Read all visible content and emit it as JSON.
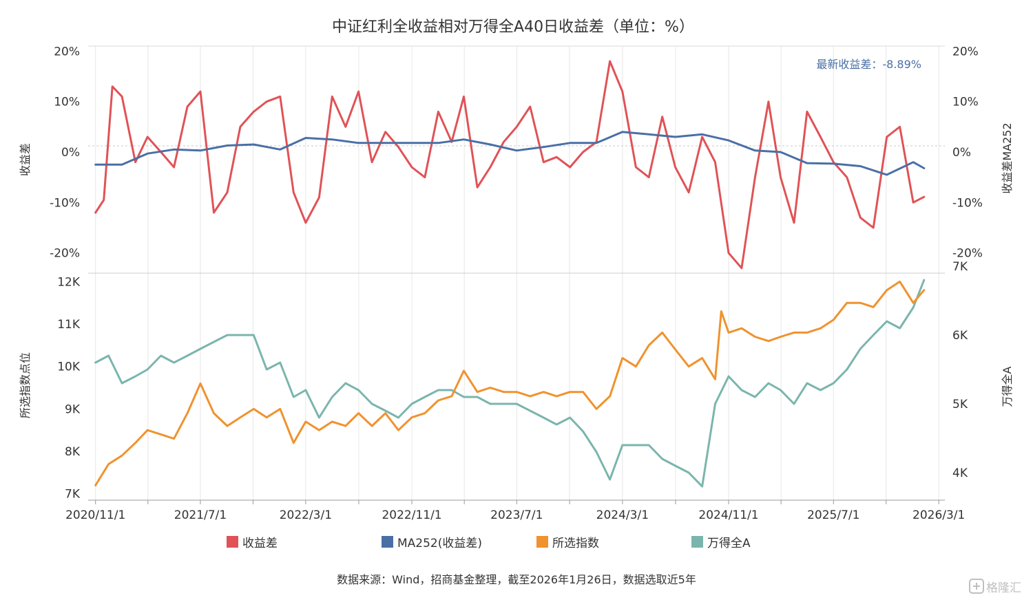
{
  "chart_data": {
    "type": "line",
    "title": "中证红利全收益相对万得全A40日收益差（单位：%）",
    "x_ticks": [
      "2020/11/1",
      "2021/7/1",
      "2022/3/1",
      "2022/11/1",
      "2023/7/1",
      "2024/3/1",
      "2024/11/1",
      "2025/7/1",
      "2026/3/1"
    ],
    "x_range": [
      "2020/10/15",
      "2026/3/15"
    ],
    "annotation": "最新收益差：-8.89%",
    "source": "数据来源：Wind，招商基金整理，截至2026年1月26日，数据选取近5年",
    "watermark": "格隆汇",
    "top_panel": {
      "ylabel_left": "收益差",
      "ylabel_right": "收益差MA252",
      "yticks": [
        "20%",
        "10%",
        "0%",
        "-10%",
        "-20%"
      ],
      "ylim": [
        -24,
        21
      ],
      "series": [
        {
          "name": "收益差",
          "color": "#e05256",
          "x": [
            "2020/11/1",
            "2020/11/20",
            "2020/12/10",
            "2021/1/1",
            "2021/2/1",
            "2021/3/1",
            "2021/4/1",
            "2021/5/1",
            "2021/6/1",
            "2021/7/1",
            "2021/8/1",
            "2021/9/1",
            "2021/10/1",
            "2021/11/1",
            "2021/12/1",
            "2022/1/1",
            "2022/2/1",
            "2022/3/1",
            "2022/4/1",
            "2022/5/1",
            "2022/6/1",
            "2022/7/1",
            "2022/8/1",
            "2022/9/1",
            "2022/10/1",
            "2022/11/1",
            "2022/12/1",
            "2023/1/1",
            "2023/2/1",
            "2023/3/1",
            "2023/4/1",
            "2023/5/1",
            "2023/6/1",
            "2023/7/1",
            "2023/8/1",
            "2023/9/1",
            "2023/10/1",
            "2023/11/1",
            "2023/12/1",
            "2024/1/1",
            "2024/2/1",
            "2024/3/1",
            "2024/4/1",
            "2024/5/1",
            "2024/6/1",
            "2024/7/1",
            "2024/8/1",
            "2024/9/1",
            "2024/10/1",
            "2024/11/1",
            "2024/12/1",
            "2025/1/1",
            "2025/2/1",
            "2025/3/1",
            "2025/4/1",
            "2025/5/1",
            "2025/6/1",
            "2025/7/1",
            "2025/8/1",
            "2025/9/1",
            "2025/10/1",
            "2025/11/1",
            "2025/12/1",
            "2026/1/1",
            "2026/1/26"
          ],
          "values": [
            -12.0,
            -9.5,
            13.0,
            11.0,
            -2.0,
            3.0,
            0.0,
            -3.0,
            9.0,
            12.0,
            -12.0,
            -8.0,
            5.0,
            8.0,
            10.0,
            11.0,
            -8.0,
            -14.0,
            -9.0,
            11.0,
            5.0,
            12.0,
            -2.0,
            4.0,
            1.0,
            -3.0,
            -5.0,
            8.0,
            2.0,
            11.0,
            -7.0,
            -3.0,
            2.0,
            5.0,
            9.0,
            -2.0,
            -1.0,
            -3.0,
            0.0,
            2.0,
            18.0,
            12.0,
            -3.0,
            -5.0,
            7.0,
            -3.0,
            -8.0,
            3.0,
            -2.0,
            -20.0,
            -23.0,
            -5.0,
            10.0,
            -5.0,
            -14.0,
            8.0,
            3.0,
            -2.0,
            -5.0,
            -13.0,
            -15.0,
            3.0,
            5.0,
            -10.0,
            -8.89
          ]
        },
        {
          "name": "MA252(收益差)",
          "color": "#4a6fa5",
          "x": [
            "2020/11/1",
            "2021/1/1",
            "2021/3/1",
            "2021/5/1",
            "2021/7/1",
            "2021/9/1",
            "2021/11/1",
            "2022/1/1",
            "2022/3/1",
            "2022/5/1",
            "2022/7/1",
            "2022/9/1",
            "2022/11/1",
            "2023/1/1",
            "2023/3/1",
            "2023/5/1",
            "2023/7/1",
            "2023/9/1",
            "2023/11/1",
            "2024/1/1",
            "2024/3/1",
            "2024/5/1",
            "2024/7/1",
            "2024/9/1",
            "2024/11/1",
            "2025/1/1",
            "2025/3/1",
            "2025/5/1",
            "2025/7/1",
            "2025/9/1",
            "2025/11/1",
            "2026/1/1",
            "2026/1/26"
          ],
          "values": [
            -2.5,
            -2.5,
            -0.3,
            0.5,
            0.3,
            1.3,
            1.5,
            0.5,
            2.8,
            2.5,
            1.8,
            1.8,
            1.8,
            1.8,
            2.5,
            1.5,
            0.3,
            1.0,
            1.8,
            1.8,
            4.0,
            3.5,
            3.0,
            3.5,
            2.3,
            0.3,
            0.0,
            -2.2,
            -2.3,
            -2.8,
            -4.5,
            -2.0,
            -3.2
          ]
        }
      ]
    },
    "bottom_panel": {
      "ylabel_left": "所选指数点位",
      "ylabel_right": "万得全A",
      "yticks_left": [
        "12K",
        "11K",
        "10K",
        "9K",
        "8K",
        "7K"
      ],
      "yticks_right": [
        "7K",
        "6K",
        "5K",
        "4K"
      ],
      "ylim_left": [
        6850,
        12200
      ],
      "ylim_right": [
        3600,
        6900
      ],
      "series": [
        {
          "name": "所选指数",
          "color": "#f0922e",
          "axis": "left",
          "x": [
            "2020/11/1",
            "2020/12/1",
            "2021/1/1",
            "2021/2/1",
            "2021/3/1",
            "2021/4/1",
            "2021/5/1",
            "2021/6/1",
            "2021/7/1",
            "2021/8/1",
            "2021/9/1",
            "2021/10/1",
            "2021/11/1",
            "2021/12/1",
            "2022/1/1",
            "2022/2/1",
            "2022/3/1",
            "2022/4/1",
            "2022/5/1",
            "2022/6/1",
            "2022/7/1",
            "2022/8/1",
            "2022/9/1",
            "2022/10/1",
            "2022/11/1",
            "2022/12/1",
            "2023/1/1",
            "2023/2/1",
            "2023/3/1",
            "2023/4/1",
            "2023/5/1",
            "2023/6/1",
            "2023/7/1",
            "2023/8/1",
            "2023/9/1",
            "2023/10/1",
            "2023/11/1",
            "2023/12/1",
            "2024/1/1",
            "2024/2/1",
            "2024/3/1",
            "2024/4/1",
            "2024/5/1",
            "2024/6/1",
            "2024/7/1",
            "2024/8/1",
            "2024/9/1",
            "2024/10/1",
            "2024/10/15",
            "2024/11/1",
            "2024/12/1",
            "2025/1/1",
            "2025/2/1",
            "2025/3/1",
            "2025/4/1",
            "2025/5/1",
            "2025/6/1",
            "2025/7/1",
            "2025/8/1",
            "2025/9/1",
            "2025/10/1",
            "2025/11/1",
            "2025/12/1",
            "2026/1/1",
            "2026/1/26"
          ],
          "values": [
            7200,
            7700,
            7900,
            8200,
            8500,
            8400,
            8300,
            8900,
            9600,
            8900,
            8600,
            8800,
            9000,
            8800,
            9000,
            8200,
            8700,
            8500,
            8700,
            8600,
            8900,
            8600,
            8900,
            8500,
            8800,
            8900,
            9200,
            9300,
            9900,
            9400,
            9500,
            9400,
            9400,
            9300,
            9400,
            9300,
            9400,
            9400,
            9000,
            9300,
            10200,
            10000,
            10500,
            10800,
            10400,
            10000,
            10200,
            9700,
            11300,
            10800,
            10900,
            10700,
            10600,
            10700,
            10800,
            10800,
            10900,
            11100,
            11500,
            11500,
            11400,
            11800,
            12000,
            11500,
            11800
          ]
        },
        {
          "name": "万得全A",
          "color": "#7ab5ad",
          "axis": "right",
          "x": [
            "2020/11/1",
            "2020/12/1",
            "2021/1/1",
            "2021/2/1",
            "2021/3/1",
            "2021/4/1",
            "2021/5/1",
            "2021/6/1",
            "2021/7/1",
            "2021/8/1",
            "2021/9/1",
            "2021/10/1",
            "2021/11/1",
            "2021/12/1",
            "2022/1/1",
            "2022/2/1",
            "2022/3/1",
            "2022/4/1",
            "2022/5/1",
            "2022/6/1",
            "2022/7/1",
            "2022/8/1",
            "2022/9/1",
            "2022/10/1",
            "2022/11/1",
            "2022/12/1",
            "2023/1/1",
            "2023/2/1",
            "2023/3/1",
            "2023/4/1",
            "2023/5/1",
            "2023/6/1",
            "2023/7/1",
            "2023/8/1",
            "2023/9/1",
            "2023/10/1",
            "2023/11/1",
            "2023/12/1",
            "2024/1/1",
            "2024/2/1",
            "2024/3/1",
            "2024/4/1",
            "2024/5/1",
            "2024/6/1",
            "2024/7/1",
            "2024/8/1",
            "2024/9/1",
            "2024/10/1",
            "2024/11/1",
            "2024/12/1",
            "2025/1/1",
            "2025/2/1",
            "2025/3/1",
            "2025/4/1",
            "2025/5/1",
            "2025/6/1",
            "2025/7/1",
            "2025/8/1",
            "2025/9/1",
            "2025/10/1",
            "2025/11/1",
            "2025/12/1",
            "2026/1/1",
            "2026/1/26"
          ],
          "values": [
            5600,
            5700,
            5300,
            5400,
            5500,
            5700,
            5600,
            5700,
            5800,
            5900,
            6000,
            6000,
            6000,
            5500,
            5600,
            5100,
            5200,
            4800,
            5100,
            5300,
            5200,
            5000,
            4900,
            4800,
            5000,
            5100,
            5200,
            5200,
            5100,
            5100,
            5000,
            5000,
            5000,
            4900,
            4800,
            4700,
            4800,
            4600,
            4300,
            3900,
            4400,
            4400,
            4400,
            4200,
            4100,
            4000,
            3800,
            5000,
            5400,
            5200,
            5100,
            5300,
            5200,
            5000,
            5300,
            5200,
            5300,
            5500,
            5800,
            6000,
            6200,
            6100,
            6400,
            6800
          ]
        }
      ]
    },
    "legend": [
      "收益差",
      "MA252(收益差)",
      "所选指数",
      "万得全A"
    ]
  },
  "colors": {
    "spread": "#e05256",
    "ma252": "#4a6fa5",
    "index": "#f0922e",
    "wind_a": "#7ab5ad",
    "annotation": "#4a6fa5"
  }
}
